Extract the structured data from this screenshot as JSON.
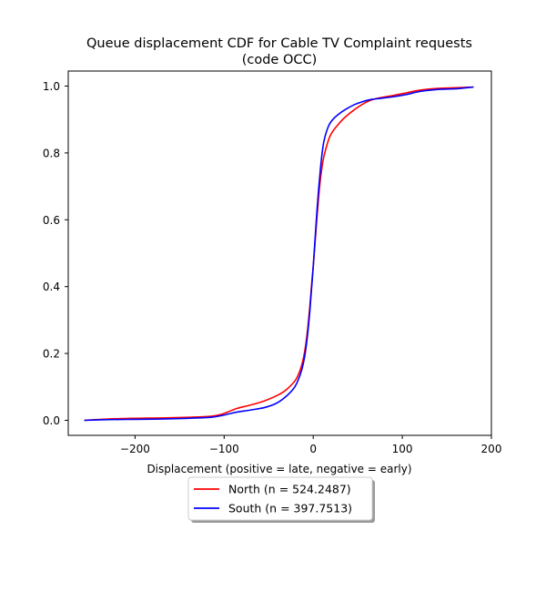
{
  "chart_data": {
    "type": "line",
    "title_line1": "Queue displacement CDF for Cable TV Complaint  requests",
    "title_line2": "(code OCC)",
    "xlabel": "Displacement (positive = late, negative = early)",
    "ylabel": "",
    "xlim": [
      -275,
      200
    ],
    "ylim": [
      -0.045,
      1.045
    ],
    "xticks": [
      -200,
      -100,
      0,
      100,
      200
    ],
    "yticks": [
      0.0,
      0.2,
      0.4,
      0.6,
      0.8,
      1.0
    ],
    "xtick_labels": [
      "−200",
      "−100",
      "0",
      "100",
      "200"
    ],
    "ytick_labels": [
      "0.0",
      "0.2",
      "0.4",
      "0.6",
      "0.8",
      "1.0"
    ],
    "grid": false,
    "legend_position": "below-center",
    "series": [
      {
        "name": "North (n = 524.2487)",
        "color": "#ff0000",
        "x": [
          -257,
          -230,
          -200,
          -170,
          -140,
          -115,
          -103,
          -95,
          -85,
          -70,
          -55,
          -40,
          -30,
          -20,
          -15,
          -12,
          -10,
          -8,
          -6,
          -4,
          -2,
          0,
          2,
          4,
          6,
          8,
          10,
          12,
          15,
          18,
          22,
          28,
          35,
          45,
          55,
          65,
          75,
          90,
          105,
          120,
          140,
          160,
          180
        ],
        "y": [
          0.0,
          0.004,
          0.006,
          0.007,
          0.009,
          0.012,
          0.018,
          0.026,
          0.036,
          0.046,
          0.058,
          0.075,
          0.092,
          0.12,
          0.148,
          0.175,
          0.2,
          0.235,
          0.28,
          0.335,
          0.4,
          0.46,
          0.53,
          0.6,
          0.665,
          0.72,
          0.76,
          0.79,
          0.82,
          0.845,
          0.865,
          0.885,
          0.905,
          0.927,
          0.945,
          0.958,
          0.965,
          0.972,
          0.98,
          0.988,
          0.993,
          0.995,
          0.997
        ]
      },
      {
        "name": "South (n = 397.7513)",
        "color": "#0000ff",
        "x": [
          -257,
          -230,
          -200,
          -170,
          -140,
          -115,
          -103,
          -95,
          -85,
          -70,
          -55,
          -42,
          -32,
          -22,
          -17,
          -13,
          -10,
          -8,
          -6,
          -4,
          -2,
          0,
          2,
          4,
          6,
          8,
          10,
          12,
          15,
          18,
          22,
          28,
          35,
          45,
          55,
          65,
          75,
          90,
          105,
          120,
          140,
          160,
          180
        ],
        "y": [
          0.0,
          0.002,
          0.003,
          0.004,
          0.006,
          0.009,
          0.014,
          0.019,
          0.025,
          0.031,
          0.038,
          0.05,
          0.068,
          0.095,
          0.12,
          0.15,
          0.185,
          0.22,
          0.265,
          0.32,
          0.39,
          0.46,
          0.54,
          0.62,
          0.69,
          0.75,
          0.8,
          0.835,
          0.865,
          0.885,
          0.9,
          0.915,
          0.928,
          0.943,
          0.953,
          0.96,
          0.963,
          0.968,
          0.975,
          0.984,
          0.99,
          0.992,
          0.997
        ]
      }
    ]
  }
}
